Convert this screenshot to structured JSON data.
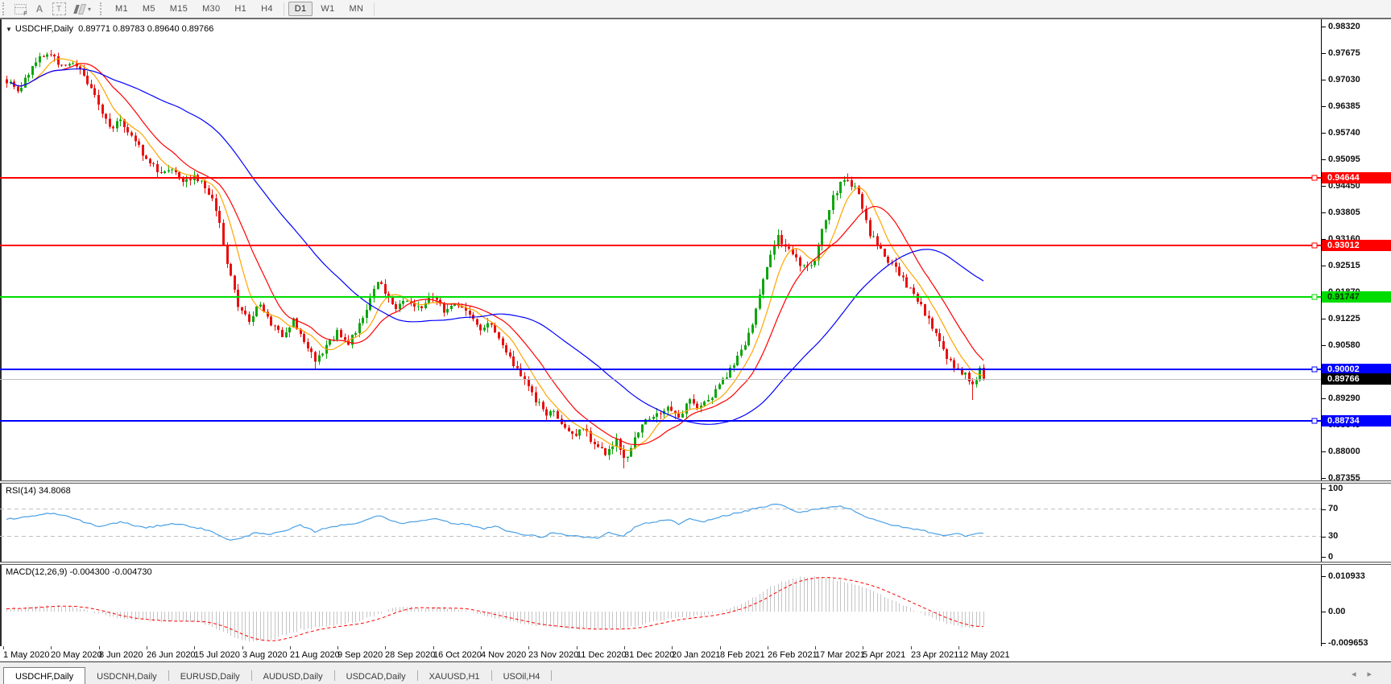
{
  "icons": {
    "chart_dropdown": "▼",
    "caret_down": "▾",
    "scroll_left": "◂",
    "scroll_right": "▸",
    "letter_a": "A",
    "letter_t": "T"
  },
  "toolbar": {
    "timeframes": [
      "M1",
      "M5",
      "M15",
      "M30",
      "H1",
      "H4",
      "D1",
      "W1",
      "MN"
    ],
    "active_timeframe": "D1"
  },
  "chart": {
    "title": {
      "symbol": "USDCHF,Daily",
      "quotes": "0.89771 0.89783 0.89640 0.89766"
    }
  },
  "rsi": {
    "label": "RSI(14)",
    "value": "34.8068",
    "ticks": [
      "100",
      "70",
      "30",
      "0"
    ]
  },
  "macd": {
    "label": "MACD(12,26,9)",
    "values": "-0.004300 -0.004730",
    "ticks": [
      "0.010933",
      "0.00",
      "-0.009653"
    ]
  },
  "tabs": {
    "items": [
      "USDCHF,Daily",
      "USDCNH,Daily",
      "EURUSD,Daily",
      "AUDUSD,Daily",
      "USDCAD,Daily",
      "XAUUSD,H1",
      "USOil,H4"
    ],
    "active": "USDCHF,Daily"
  },
  "chart_data": {
    "type": "candlestick+indicators",
    "symbol": "USDCHF",
    "timeframe": "Daily",
    "ohlc_current": {
      "open": 0.89771,
      "high": 0.89783,
      "low": 0.8964,
      "close": 0.89766
    },
    "bars": 267,
    "price_ylim": [
      0.87355,
      0.9832
    ],
    "price_ticks": [
      0.9832,
      0.97675,
      0.9703,
      0.96385,
      0.9574,
      0.95095,
      0.9445,
      0.93805,
      0.9316,
      0.92515,
      0.9187,
      0.91225,
      0.9058,
      0.89935,
      0.8929,
      0.88645,
      0.88,
      0.87355
    ],
    "hlines": [
      {
        "price": 0.94644,
        "color": "#FF0000",
        "text": "#FFFFFF"
      },
      {
        "price": 0.93012,
        "color": "#FF0000",
        "text": "#FFFFFF"
      },
      {
        "price": 0.91747,
        "color": "#00DC00",
        "text": "#003300"
      },
      {
        "price": 0.90002,
        "color": "#0000FF",
        "text": "#FFFFFF"
      },
      {
        "price": 0.88734,
        "color": "#0000FF",
        "text": "#FFFFFF"
      }
    ],
    "current_price": 0.89766,
    "x_dates": [
      "1 May 2020",
      "20 May 2020",
      "8 Jun 2020",
      "26 Jun 2020",
      "15 Jul 2020",
      "3 Aug 2020",
      "21 Aug 2020",
      "9 Sep 2020",
      "28 Sep 2020",
      "16 Oct 2020",
      "4 Nov 2020",
      "23 Nov 2020",
      "11 Dec 2020",
      "31 Dec 2020",
      "20 Jan 2021",
      "8 Feb 2021",
      "26 Feb 2021",
      "17 Mar 2021",
      "5 Apr 2021",
      "23 Apr 2021",
      "12 May 2021"
    ],
    "price_anchors": [
      [
        0,
        0.97
      ],
      [
        3,
        0.9672
      ],
      [
        6,
        0.972
      ],
      [
        9,
        0.9755
      ],
      [
        12,
        0.9768
      ],
      [
        15,
        0.9732
      ],
      [
        18,
        0.9748
      ],
      [
        21,
        0.9712
      ],
      [
        25,
        0.9645
      ],
      [
        28,
        0.9585
      ],
      [
        31,
        0.9603
      ],
      [
        35,
        0.9558
      ],
      [
        38,
        0.9508
      ],
      [
        42,
        0.9478
      ],
      [
        45,
        0.9492
      ],
      [
        48,
        0.9462
      ],
      [
        51,
        0.9468
      ],
      [
        54,
        0.9445
      ],
      [
        56,
        0.9408
      ],
      [
        58,
        0.9355
      ],
      [
        60,
        0.9258
      ],
      [
        63,
        0.9152
      ],
      [
        66,
        0.912
      ],
      [
        69,
        0.9158
      ],
      [
        72,
        0.9108
      ],
      [
        75,
        0.9085
      ],
      [
        78,
        0.9118
      ],
      [
        81,
        0.9062
      ],
      [
        84,
        0.9025
      ],
      [
        87,
        0.9052
      ],
      [
        90,
        0.9092
      ],
      [
        93,
        0.9062
      ],
      [
        96,
        0.9105
      ],
      [
        99,
        0.917
      ],
      [
        101,
        0.9218
      ],
      [
        103,
        0.9185
      ],
      [
        106,
        0.9142
      ],
      [
        109,
        0.9168
      ],
      [
        113,
        0.9152
      ],
      [
        116,
        0.9178
      ],
      [
        119,
        0.9142
      ],
      [
        122,
        0.9162
      ],
      [
        126,
        0.9135
      ],
      [
        129,
        0.9092
      ],
      [
        132,
        0.9112
      ],
      [
        135,
        0.9062
      ],
      [
        139,
        0.8995
      ],
      [
        142,
        0.8952
      ],
      [
        145,
        0.8912
      ],
      [
        147,
        0.8882
      ],
      [
        149,
        0.8902
      ],
      [
        151,
        0.8868
      ],
      [
        154,
        0.8838
      ],
      [
        157,
        0.8858
      ],
      [
        160,
        0.8818
      ],
      [
        163,
        0.8798
      ],
      [
        166,
        0.8828
      ],
      [
        168,
        0.8782
      ],
      [
        170,
        0.8802
      ],
      [
        172,
        0.8852
      ],
      [
        174,
        0.8872
      ],
      [
        177,
        0.8888
      ],
      [
        180,
        0.8912
      ],
      [
        183,
        0.8882
      ],
      [
        186,
        0.8922
      ],
      [
        189,
        0.8905
      ],
      [
        192,
        0.8938
      ],
      [
        195,
        0.8972
      ],
      [
        198,
        0.9012
      ],
      [
        202,
        0.9082
      ],
      [
        205,
        0.9182
      ],
      [
        208,
        0.9282
      ],
      [
        210,
        0.9318
      ],
      [
        212,
        0.9298
      ],
      [
        214,
        0.9272
      ],
      [
        216,
        0.9258
      ],
      [
        218,
        0.9245
      ],
      [
        220,
        0.9268
      ],
      [
        222,
        0.934
      ],
      [
        225,
        0.9415
      ],
      [
        227,
        0.9448
      ],
      [
        229,
        0.9462
      ],
      [
        232,
        0.9428
      ],
      [
        235,
        0.933
      ],
      [
        238,
        0.9292
      ],
      [
        240,
        0.9262
      ],
      [
        243,
        0.9232
      ],
      [
        246,
        0.9192
      ],
      [
        249,
        0.9152
      ],
      [
        252,
        0.9098
      ],
      [
        255,
        0.9042
      ],
      [
        258,
        0.9002
      ],
      [
        261,
        0.8988
      ],
      [
        263,
        0.8962
      ],
      [
        265,
        0.8996
      ],
      [
        266,
        0.8977
      ]
    ],
    "wick_overrides": {
      "12": {
        "high": 0.9775
      },
      "84": {
        "low": 0.8999
      },
      "168": {
        "low": 0.8759
      },
      "229": {
        "high": 0.9475
      },
      "263": {
        "low": 0.8925
      }
    },
    "ma_periods": {
      "fast": 8,
      "mid": 16,
      "slow": 48
    },
    "rsi": {
      "period": 14,
      "current": 34.8068,
      "ylim": [
        0,
        100
      ],
      "levels": [
        70,
        30
      ],
      "anchors": [
        [
          0,
          55
        ],
        [
          8,
          60
        ],
        [
          12,
          64
        ],
        [
          18,
          57
        ],
        [
          25,
          44
        ],
        [
          31,
          51
        ],
        [
          38,
          42
        ],
        [
          45,
          49
        ],
        [
          50,
          45
        ],
        [
          54,
          40
        ],
        [
          58,
          32
        ],
        [
          61,
          24
        ],
        [
          64,
          27
        ],
        [
          68,
          36
        ],
        [
          72,
          33
        ],
        [
          76,
          38
        ],
        [
          80,
          46
        ],
        [
          84,
          37
        ],
        [
          88,
          44
        ],
        [
          93,
          47
        ],
        [
          97,
          52
        ],
        [
          101,
          61
        ],
        [
          104,
          54
        ],
        [
          108,
          49
        ],
        [
          113,
          53
        ],
        [
          117,
          57
        ],
        [
          121,
          49
        ],
        [
          126,
          47
        ],
        [
          130,
          41
        ],
        [
          133,
          46
        ],
        [
          136,
          38
        ],
        [
          139,
          34
        ],
        [
          143,
          31
        ],
        [
          146,
          29
        ],
        [
          149,
          36
        ],
        [
          152,
          32
        ],
        [
          155,
          30
        ],
        [
          158,
          29
        ],
        [
          161,
          27
        ],
        [
          164,
          35
        ],
        [
          168,
          30
        ],
        [
          171,
          43
        ],
        [
          174,
          49
        ],
        [
          177,
          51
        ],
        [
          180,
          55
        ],
        [
          183,
          48
        ],
        [
          186,
          55
        ],
        [
          189,
          51
        ],
        [
          193,
          56
        ],
        [
          196,
          61
        ],
        [
          200,
          65
        ],
        [
          204,
          71
        ],
        [
          208,
          75
        ],
        [
          210,
          78
        ],
        [
          213,
          70
        ],
        [
          216,
          64
        ],
        [
          219,
          69
        ],
        [
          223,
          72
        ],
        [
          227,
          74
        ],
        [
          230,
          70
        ],
        [
          232,
          64
        ],
        [
          235,
          56
        ],
        [
          238,
          51
        ],
        [
          241,
          47
        ],
        [
          244,
          43
        ],
        [
          247,
          41
        ],
        [
          250,
          38
        ],
        [
          253,
          34
        ],
        [
          256,
          31
        ],
        [
          259,
          34
        ],
        [
          261,
          31
        ],
        [
          263,
          33
        ],
        [
          265,
          36
        ],
        [
          266,
          34.8
        ]
      ]
    },
    "macd": {
      "params": "12,26,9",
      "current_main": -0.0043,
      "current_signal": -0.00473,
      "ylim": [
        -0.009653,
        0.010933
      ],
      "anchors": [
        [
          0,
          0.0008
        ],
        [
          8,
          0.0016
        ],
        [
          14,
          0.0019
        ],
        [
          20,
          0.001
        ],
        [
          25,
          -0.0006
        ],
        [
          30,
          -0.0019
        ],
        [
          36,
          -0.0026
        ],
        [
          42,
          -0.0031
        ],
        [
          48,
          -0.0028
        ],
        [
          52,
          -0.0033
        ],
        [
          56,
          -0.0047
        ],
        [
          60,
          -0.0068
        ],
        [
          64,
          -0.0087
        ],
        [
          68,
          -0.0093
        ],
        [
          72,
          -0.0086
        ],
        [
          76,
          -0.0071
        ],
        [
          80,
          -0.0056
        ],
        [
          85,
          -0.0049
        ],
        [
          90,
          -0.0041
        ],
        [
          95,
          -0.0031
        ],
        [
          101,
          -0.0009
        ],
        [
          105,
          0.001
        ],
        [
          108,
          0.0016
        ],
        [
          113,
          0.0009
        ],
        [
          118,
          0.0013
        ],
        [
          123,
          0.0006
        ],
        [
          126,
          0.0001
        ],
        [
          130,
          -0.001
        ],
        [
          134,
          -0.0021
        ],
        [
          139,
          -0.0033
        ],
        [
          144,
          -0.0043
        ],
        [
          149,
          -0.0049
        ],
        [
          154,
          -0.0053
        ],
        [
          159,
          -0.0056
        ],
        [
          164,
          -0.0051
        ],
        [
          168,
          -0.0053
        ],
        [
          172,
          -0.0041
        ],
        [
          176,
          -0.0031
        ],
        [
          180,
          -0.0023
        ],
        [
          184,
          -0.0018
        ],
        [
          188,
          -0.0014
        ],
        [
          192,
          -0.0007
        ],
        [
          196,
          0.0006
        ],
        [
          200,
          0.0022
        ],
        [
          204,
          0.0048
        ],
        [
          208,
          0.0078
        ],
        [
          212,
          0.0096
        ],
        [
          216,
          0.0106
        ],
        [
          220,
          0.0108
        ],
        [
          224,
          0.0101
        ],
        [
          228,
          0.0093
        ],
        [
          232,
          0.0081
        ],
        [
          236,
          0.0061
        ],
        [
          240,
          0.0041
        ],
        [
          244,
          0.0021
        ],
        [
          248,
          0.0001
        ],
        [
          252,
          -0.0021
        ],
        [
          256,
          -0.0036
        ],
        [
          260,
          -0.0046
        ],
        [
          263,
          -0.0049
        ],
        [
          266,
          -0.0043
        ]
      ]
    },
    "colors": {
      "candle_up": "#0EA60E",
      "candle_down": "#E81010",
      "ma_fast": "#FFA500",
      "ma_mid": "#FF0000",
      "ma_slow": "#0000FF",
      "rsi_line": "#4AA0E6",
      "rsi_level_dash": "#C0C0C0",
      "macd_hist": "#C4C4C4",
      "macd_signal": "#FF0000",
      "current_price_line": "#BCBCBC",
      "current_price_label_bg": "#000000"
    }
  }
}
